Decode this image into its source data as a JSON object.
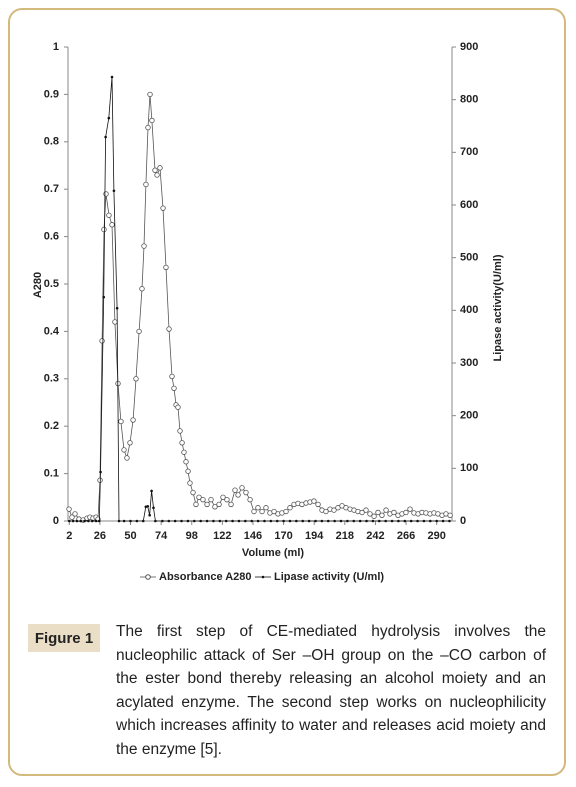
{
  "chart_data": {
    "type": "line",
    "xlabel": "Volume (ml)",
    "ylabel": "A280",
    "y2label": "Lipase activity(U/ml)",
    "xlim": [
      1,
      302
    ],
    "xticks": [
      2,
      26,
      50,
      74,
      98,
      122,
      146,
      170,
      194,
      218,
      242,
      266,
      290
    ],
    "ylim": [
      0,
      1
    ],
    "yticks": [
      0,
      0.1,
      0.2,
      0.3,
      0.4,
      0.5,
      0.6,
      0.7,
      0.8,
      0.9,
      1
    ],
    "y2lim": [
      0,
      900
    ],
    "y2ticks": [
      0,
      100,
      200,
      300,
      400,
      500,
      600,
      700,
      800,
      900
    ],
    "legend": "bottom",
    "series": [
      {
        "name": "Absorbance A280",
        "color": "#555555",
        "marker": "circle",
        "x": [
          1.8,
          4.1,
          6.5,
          9.6,
          12.8,
          15.9,
          18.2,
          20.6,
          23,
          24.5,
          26.1,
          27.7,
          29.2,
          30.8,
          33.1,
          35.5,
          37.8,
          40.2,
          42.5,
          44.9,
          47.2,
          49.6,
          52,
          54.3,
          56.7,
          59,
          60.6,
          62.1,
          63.7,
          65.3,
          66.8,
          69.2,
          70.8,
          73.1,
          75.5,
          77.8,
          80.2,
          82.5,
          84.1,
          85.7,
          87.2,
          88.8,
          90.4,
          91.9,
          93.5,
          95.1,
          96.6,
          99,
          101.3,
          103.7,
          106.8,
          110,
          113.1,
          116.2,
          119.4,
          122.5,
          125.6,
          128.8,
          131.9,
          134.3,
          137.4,
          140.5,
          143.7,
          146.8,
          149.9,
          153.1,
          156.2,
          159.3,
          162.5,
          165.6,
          168.7,
          171.9,
          175,
          178.2,
          181.3,
          184.4,
          187.6,
          190.7,
          193.8,
          197,
          200.1,
          203.2,
          206.4,
          209.5,
          212.6,
          215.8,
          218.9,
          222.1,
          225.2,
          228.3,
          231.5,
          234.6,
          237.7,
          240.9,
          244,
          247.1,
          250.3,
          253.4,
          256.5,
          259.7,
          262.8,
          265.9,
          269.1,
          272.2,
          275.4,
          278.5,
          281.6,
          284.8,
          287.9,
          291,
          294.2,
          297.3,
          300.5
        ],
        "values": [
          0.025,
          0.008,
          0.015,
          0.004,
          0.002,
          0.006,
          0.008,
          0.006,
          0.008,
          0.004,
          0.086,
          0.38,
          0.615,
          0.69,
          0.645,
          0.625,
          0.42,
          0.29,
          0.21,
          0.15,
          0.133,
          0.165,
          0.213,
          0.3,
          0.4,
          0.49,
          0.58,
          0.71,
          0.83,
          0.9,
          0.845,
          0.74,
          0.73,
          0.745,
          0.66,
          0.535,
          0.405,
          0.305,
          0.28,
          0.245,
          0.24,
          0.19,
          0.165,
          0.145,
          0.125,
          0.105,
          0.08,
          0.06,
          0.035,
          0.05,
          0.045,
          0.035,
          0.045,
          0.03,
          0.035,
          0.05,
          0.045,
          0.035,
          0.065,
          0.055,
          0.07,
          0.06,
          0.045,
          0.02,
          0.028,
          0.02,
          0.028,
          0.017,
          0.02,
          0.015,
          0.017,
          0.02,
          0.028,
          0.035,
          0.037,
          0.035,
          0.038,
          0.04,
          0.042,
          0.035,
          0.023,
          0.02,
          0.025,
          0.023,
          0.028,
          0.032,
          0.028,
          0.025,
          0.023,
          0.02,
          0.018,
          0.023,
          0.015,
          0.01,
          0.018,
          0.012,
          0.023,
          0.015,
          0.018,
          0.012,
          0.015,
          0.018,
          0.025,
          0.017,
          0.015,
          0.018,
          0.017,
          0.015,
          0.017,
          0.015,
          0.012,
          0.015,
          0.012
        ]
      },
      {
        "name": "Lipase activity (U/ml)",
        "color": "#111111",
        "marker": "dot",
        "axis": "y2",
        "x": [
          2,
          5,
          8,
          11,
          14,
          17,
          20,
          23,
          25.5,
          26.5,
          29,
          30.5,
          33,
          35.5,
          37,
          39.5,
          41,
          45,
          50,
          55,
          60,
          62,
          63.5,
          65,
          66.5,
          68,
          69.5,
          75,
          80,
          85,
          90,
          95,
          100,
          105,
          110,
          115,
          120,
          125,
          130,
          135,
          140,
          145,
          150,
          155,
          160,
          165,
          170,
          175,
          180,
          185,
          190,
          195,
          200,
          205,
          210,
          215,
          220,
          225,
          230,
          235,
          240,
          245,
          250,
          255,
          260,
          265,
          270,
          275,
          280,
          285,
          290,
          295,
          300
        ],
        "values": [
          0,
          0,
          0,
          0,
          0,
          0,
          0,
          0,
          0,
          93,
          425,
          729,
          765,
          843,
          627,
          404,
          0,
          0,
          0,
          0,
          0,
          27,
          28,
          11,
          57,
          25,
          0,
          0,
          0,
          0,
          0,
          0,
          0,
          0,
          0,
          0,
          0,
          0,
          0,
          0,
          0,
          0,
          0,
          0,
          0,
          0,
          0,
          0,
          0,
          0,
          0,
          0,
          0,
          0,
          0,
          0,
          0,
          0,
          0,
          0,
          0,
          0,
          0,
          0,
          0,
          0,
          0,
          0,
          0,
          0,
          0,
          0,
          0
        ]
      }
    ]
  },
  "caption": {
    "label": "Figure 1",
    "text": "The first step of CE-mediated hydrolysis involves the nucleophilic attack of Ser –OH group on the –CO carbon of the ester bond thereby releasing an alcohol moiety and an acylated enzyme. The second step works on nucleophilicity which increases affinity to water and releases acid moiety and the enzyme [5]."
  }
}
